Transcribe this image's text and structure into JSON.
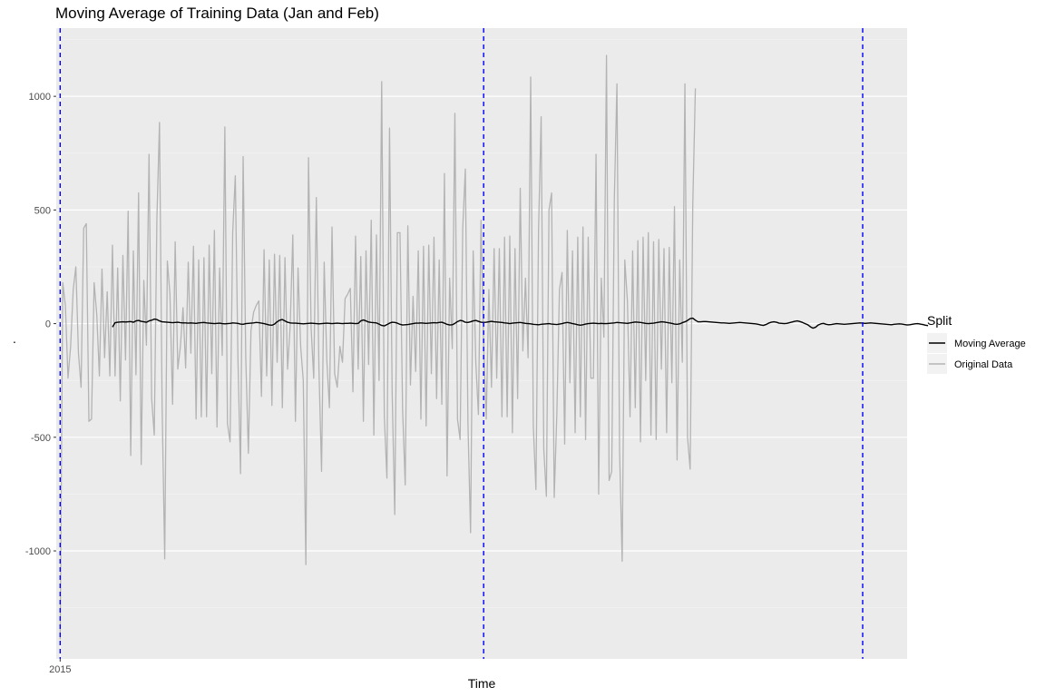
{
  "chart_data": {
    "type": "line",
    "title": "Moving Average of Training Data (Jan and Feb)",
    "xlabel": "Time",
    "ylabel": ".",
    "x_ticks": [
      {
        "value": 0,
        "label": "2015"
      }
    ],
    "y_ticks": [
      -1000,
      -500,
      0,
      500,
      1000
    ],
    "xlim": [
      -1.5,
      324
    ],
    "ylim": [
      -1475,
      1300
    ],
    "vlines": [
      0,
      162,
      307
    ],
    "vline_color": "#0000ff",
    "grid": true,
    "legend": {
      "title": "Split",
      "placement": "right",
      "entries": [
        {
          "label": "Moving Average",
          "color": "#000000"
        },
        {
          "label": "Original Data",
          "color": "#b3b3b3"
        }
      ]
    },
    "series": [
      {
        "name": "Original Data",
        "color": "#b3b3b3",
        "x_start": 0,
        "x_step": 1,
        "values": [
          -1390,
          180,
          80,
          -240,
          -100,
          150,
          250,
          -130,
          -280,
          420,
          440,
          -430,
          -420,
          180,
          40,
          -230,
          240,
          -150,
          140,
          -230,
          345,
          -230,
          245,
          -340,
          300,
          -160,
          495,
          -580,
          320,
          -225,
          575,
          -620,
          190,
          -95,
          745,
          -330,
          -490,
          460,
          885,
          -360,
          -1035,
          275,
          130,
          -355,
          360,
          -200,
          -100,
          70,
          -195,
          270,
          -130,
          340,
          -420,
          280,
          -410,
          290,
          -410,
          345,
          -220,
          410,
          -455,
          245,
          -140,
          865,
          -440,
          -520,
          400,
          650,
          -150,
          -660,
          735,
          -150,
          -570,
          -30,
          50,
          80,
          100,
          -320,
          325,
          -230,
          280,
          -360,
          305,
          -170,
          300,
          -370,
          290,
          -200,
          -10,
          390,
          -430,
          245,
          -100,
          -250,
          -1060,
          730,
          -20,
          -240,
          555,
          -200,
          -650,
          270,
          -160,
          -370,
          425,
          -220,
          -280,
          -100,
          -170,
          110,
          130,
          155,
          -300,
          385,
          -200,
          295,
          -430,
          320,
          -180,
          455,
          -490,
          390,
          -250,
          1065,
          -410,
          -680,
          860,
          -300,
          -840,
          400,
          400,
          -380,
          -710,
          430,
          -270,
          120,
          -210,
          320,
          -420,
          340,
          -450,
          345,
          -220,
          380,
          -330,
          280,
          -355,
          660,
          -670,
          200,
          -110,
          925,
          -420,
          -510,
          420,
          680,
          -440,
          -920,
          320,
          -170,
          -400,
          455,
          -100,
          -420,
          150,
          -280,
          330,
          -240,
          330,
          -410,
          380,
          -410,
          385,
          -480,
          330,
          -330,
          595,
          -120,
          200,
          -150,
          1085,
          -450,
          -730,
          410,
          910,
          -550,
          -760,
          500,
          575,
          -765,
          -400,
          150,
          225,
          -530,
          410,
          -260,
          320,
          -480,
          380,
          -410,
          425,
          -510,
          380,
          -240,
          -240,
          745,
          -750,
          200,
          -60,
          1180,
          -690,
          -650,
          550,
          1055,
          -560,
          -1045,
          280,
          100,
          -410,
          320,
          -370,
          365,
          -520,
          380,
          -250,
          400,
          -490,
          360,
          -510,
          370,
          -200,
          330,
          -480,
          335,
          -260,
          515,
          -600,
          280,
          -170,
          1055,
          -500,
          -640,
          520,
          1035
        ]
      },
      {
        "name": "Moving Average",
        "color": "#000000",
        "x_start": 20,
        "x_step": 1,
        "values": [
          -15,
          4,
          6,
          7,
          8,
          7,
          8,
          9,
          6,
          12,
          14,
          10,
          8,
          6,
          12,
          15,
          20,
          18,
          12,
          8,
          7,
          6,
          5,
          4,
          5,
          6,
          4,
          3,
          3,
          2,
          3,
          2,
          1,
          3,
          4,
          5,
          3,
          2,
          1,
          0,
          1,
          2,
          0,
          -1,
          0,
          1,
          3,
          2,
          1,
          -2,
          -3,
          0,
          1,
          2,
          3,
          5,
          4,
          2,
          0,
          -3,
          -6,
          -7,
          -2,
          8,
          15,
          18,
          12,
          6,
          3,
          2,
          2,
          1,
          0,
          -1,
          0,
          1,
          2,
          1,
          0,
          -1,
          0,
          1,
          2,
          1,
          0,
          1,
          2,
          1,
          0,
          1,
          1,
          2,
          1,
          0,
          1,
          12,
          16,
          12,
          7,
          5,
          4,
          3,
          -2,
          -8,
          -10,
          -4,
          2,
          6,
          5,
          2,
          -3,
          -6,
          -5,
          -4,
          -2,
          0,
          2,
          2,
          3,
          2,
          1,
          2,
          3,
          4,
          3,
          5,
          6,
          2,
          -3,
          -6,
          -5,
          1,
          9,
          14,
          12,
          6,
          5,
          8,
          12,
          14,
          10,
          6,
          5,
          6,
          8,
          10,
          8,
          7,
          6,
          5,
          3,
          2,
          0,
          2,
          3,
          4,
          5,
          3,
          1,
          0,
          -1,
          -3,
          -4,
          -5,
          -3,
          -2,
          -1,
          0,
          -2,
          -3,
          -4,
          -2,
          0,
          3,
          5,
          3,
          0,
          -2,
          -5,
          -7,
          -5,
          -2,
          0,
          1,
          2,
          1,
          0,
          1,
          0,
          0,
          1,
          2,
          3,
          5,
          4,
          3,
          2,
          1,
          3,
          5,
          7,
          6,
          5,
          3,
          1,
          0,
          1,
          2,
          4,
          6,
          8,
          7,
          5,
          3,
          1,
          -2,
          -3,
          -1,
          4,
          8,
          14,
          22,
          24,
          15,
          8,
          8,
          9,
          9,
          8,
          7,
          6,
          5,
          4,
          3,
          3,
          2,
          1,
          2,
          3,
          4,
          5,
          4,
          3,
          2,
          1,
          0,
          -1,
          -3,
          -6,
          -8,
          -4,
          2,
          6,
          8,
          6,
          2,
          1,
          0,
          1,
          4,
          7,
          10,
          12,
          9,
          5,
          0,
          -5,
          -14,
          -20,
          -16,
          -6,
          -1,
          1,
          -3,
          -5,
          -4,
          -2,
          0,
          -1,
          -2,
          -3,
          -2,
          -1,
          0,
          1,
          2,
          3,
          2,
          1,
          2,
          3,
          2,
          1,
          0,
          -1,
          -2,
          -3,
          -4,
          -5,
          -3,
          -2,
          -1,
          -2,
          -4,
          -6,
          -5,
          -3,
          -1,
          0,
          -2,
          -4,
          -7,
          -9
        ]
      }
    ]
  }
}
